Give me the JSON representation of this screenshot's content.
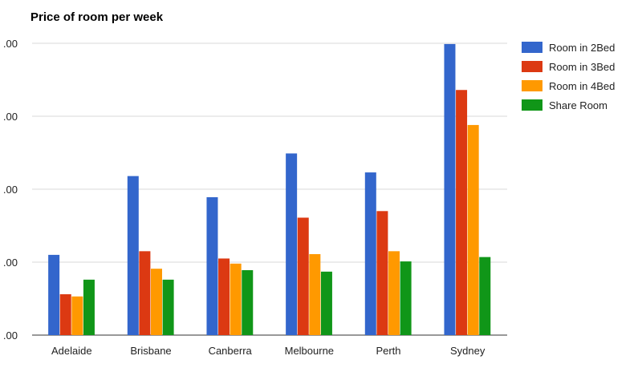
{
  "chart_data": {
    "type": "bar",
    "title": "Price of room per week",
    "categories": [
      "Adelaide",
      "Brisbane",
      "Canberra",
      "Melbourne",
      "Perth",
      "Sydney"
    ],
    "series": [
      {
        "name": "Room in 2Bed",
        "color": "#3366cc",
        "values": [
          110,
          218,
          189,
          249,
          223,
          399
        ]
      },
      {
        "name": "Room in 3Bed",
        "color": "#dc3912",
        "values": [
          56,
          115,
          105,
          161,
          170,
          336
        ]
      },
      {
        "name": "Room in 4Bed",
        "color": "#ff9900",
        "values": [
          53,
          91,
          98,
          111,
          115,
          288
        ]
      },
      {
        "name": "Share Room",
        "color": "#109618",
        "values": [
          76,
          76,
          89,
          87,
          101,
          107
        ]
      }
    ],
    "ylim": [
      0,
      400
    ],
    "yticks": [
      0,
      100,
      200,
      300,
      400
    ],
    "ytick_labels": [
      ".00",
      ".00",
      ".00",
      ".00",
      ".00"
    ],
    "xlabel": "",
    "ylabel": "",
    "grid": true,
    "legend_position": "right"
  }
}
